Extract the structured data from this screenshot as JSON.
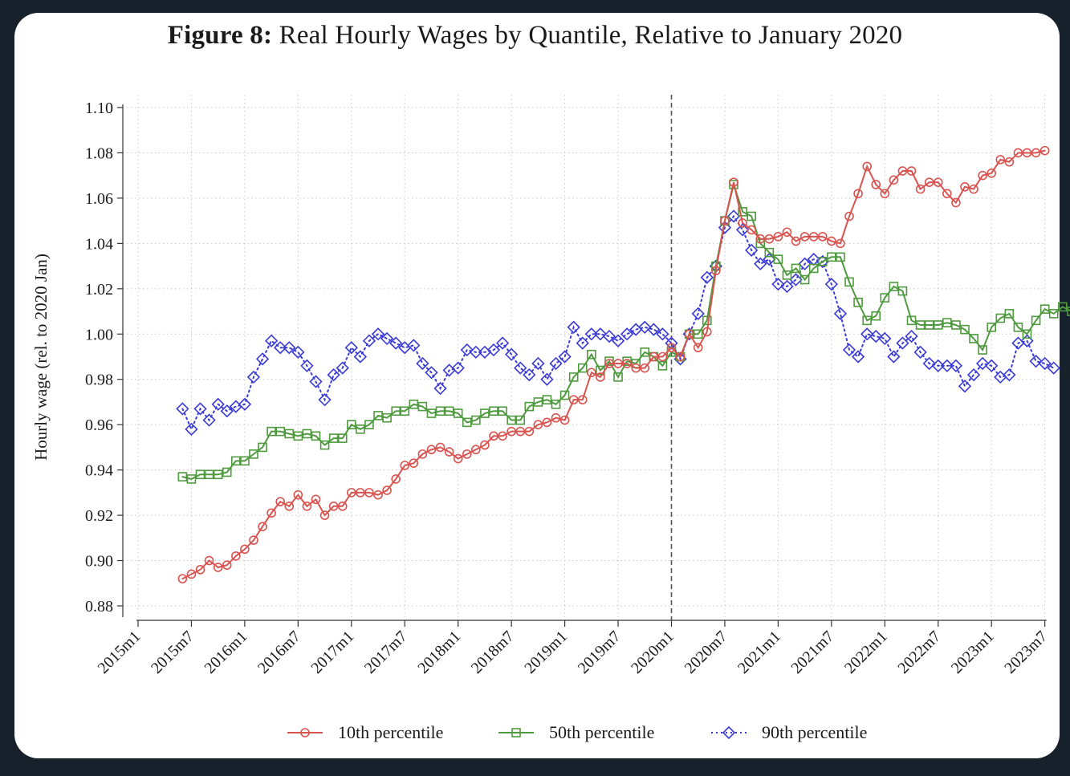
{
  "title_bold": "Figure 8:",
  "title_rest": "Real Hourly Wages by Quantile, Relative to January 2020",
  "chart_data": {
    "type": "line",
    "title": "Figure 8: Real Hourly Wages by Quantile, Relative to January 2020",
    "xlabel": "",
    "ylabel": "Hourly wage (rel. to 2020 Jan)",
    "ylim": [
      0.88,
      1.1
    ],
    "yticks": [
      "0.88",
      "0.90",
      "0.92",
      "0.94",
      "0.96",
      "0.98",
      "1.00",
      "1.02",
      "1.04",
      "1.06",
      "1.08",
      "1.10"
    ],
    "xticks": [
      "2015m1",
      "2015m7",
      "2016m1",
      "2016m7",
      "2017m1",
      "2017m7",
      "2018m1",
      "2018m7",
      "2019m1",
      "2019m7",
      "2020m1",
      "2020m7",
      "2021m1",
      "2021m7",
      "2022m1",
      "2022m7",
      "2023m1",
      "2023m7"
    ],
    "x_start": "2015m6",
    "reference_line": "2020m1",
    "grid": true,
    "legend_position": "bottom",
    "series": [
      {
        "name": "10th percentile",
        "color": "#d9534f",
        "marker": "circle",
        "dash": "solid",
        "values": [
          0.892,
          0.894,
          0.896,
          0.9,
          0.897,
          0.898,
          0.902,
          0.905,
          0.909,
          0.915,
          0.921,
          0.926,
          0.924,
          0.929,
          0.924,
          0.927,
          0.92,
          0.924,
          0.924,
          0.93,
          0.93,
          0.93,
          0.929,
          0.931,
          0.936,
          0.942,
          0.943,
          0.947,
          0.949,
          0.95,
          0.948,
          0.945,
          0.947,
          0.949,
          0.951,
          0.955,
          0.955,
          0.957,
          0.957,
          0.957,
          0.96,
          0.961,
          0.963,
          0.962,
          0.971,
          0.971,
          0.983,
          0.981,
          0.987,
          0.987,
          0.987,
          0.985,
          0.985,
          0.99,
          0.99,
          0.994,
          0.99,
          1.0,
          0.994,
          1.001,
          1.028,
          1.05,
          1.067,
          1.049,
          1.046,
          1.042,
          1.042,
          1.043,
          1.045,
          1.041,
          1.043,
          1.043,
          1.043,
          1.041,
          1.04,
          1.052,
          1.062,
          1.074,
          1.066,
          1.062,
          1.068,
          1.072,
          1.072,
          1.064,
          1.067,
          1.067,
          1.062,
          1.058,
          1.065,
          1.064,
          1.07,
          1.071,
          1.077,
          1.076,
          1.08,
          1.08,
          1.08,
          1.081
        ]
      },
      {
        "name": "50th percentile",
        "color": "#4f9a3e",
        "marker": "square",
        "dash": "solid",
        "values": [
          0.937,
          0.936,
          0.938,
          0.938,
          0.938,
          0.939,
          0.944,
          0.944,
          0.947,
          0.95,
          0.957,
          0.957,
          0.956,
          0.955,
          0.956,
          0.955,
          0.951,
          0.954,
          0.954,
          0.96,
          0.958,
          0.96,
          0.964,
          0.963,
          0.966,
          0.966,
          0.969,
          0.968,
          0.965,
          0.966,
          0.966,
          0.965,
          0.961,
          0.962,
          0.965,
          0.966,
          0.966,
          0.962,
          0.962,
          0.968,
          0.97,
          0.971,
          0.969,
          0.973,
          0.981,
          0.985,
          0.991,
          0.984,
          0.988,
          0.981,
          0.988,
          0.987,
          0.992,
          0.99,
          0.986,
          0.992,
          0.99,
          1.0,
          1.0,
          1.006,
          1.03,
          1.05,
          1.066,
          1.054,
          1.052,
          1.04,
          1.036,
          1.033,
          1.026,
          1.029,
          1.024,
          1.029,
          1.032,
          1.034,
          1.034,
          1.023,
          1.014,
          1.006,
          1.008,
          1.016,
          1.021,
          1.019,
          1.006,
          1.004,
          1.004,
          1.004,
          1.005,
          1.004,
          1.002,
          0.998,
          0.993,
          1.003,
          1.007,
          1.009,
          1.003,
          1.0,
          1.006,
          1.011,
          1.009,
          1.012,
          1.01
        ]
      },
      {
        "name": "90th percentile",
        "color": "#3a3ad6",
        "marker": "diamond",
        "dash": "dotted",
        "values": [
          0.967,
          0.958,
          0.967,
          0.962,
          0.969,
          0.966,
          0.968,
          0.969,
          0.981,
          0.989,
          0.997,
          0.994,
          0.994,
          0.992,
          0.986,
          0.979,
          0.971,
          0.982,
          0.985,
          0.994,
          0.99,
          0.997,
          1.0,
          0.998,
          0.996,
          0.994,
          0.995,
          0.987,
          0.983,
          0.976,
          0.984,
          0.985,
          0.993,
          0.992,
          0.992,
          0.993,
          0.996,
          0.991,
          0.985,
          0.982,
          0.987,
          0.98,
          0.987,
          0.99,
          1.003,
          0.996,
          1.0,
          1.0,
          0.999,
          0.997,
          1.0,
          1.002,
          1.003,
          1.002,
          1.0,
          0.996,
          0.989,
          1.0,
          1.009,
          1.025,
          1.03,
          1.047,
          1.052,
          1.046,
          1.037,
          1.031,
          1.033,
          1.022,
          1.021,
          1.024,
          1.031,
          1.033,
          1.032,
          1.022,
          1.009,
          0.993,
          0.99,
          1.0,
          0.999,
          0.998,
          0.99,
          0.996,
          0.999,
          0.992,
          0.987,
          0.986,
          0.986,
          0.986,
          0.977,
          0.982,
          0.987,
          0.986,
          0.981,
          0.982,
          0.996,
          0.997,
          0.988,
          0.987,
          0.985
        ]
      }
    ]
  }
}
